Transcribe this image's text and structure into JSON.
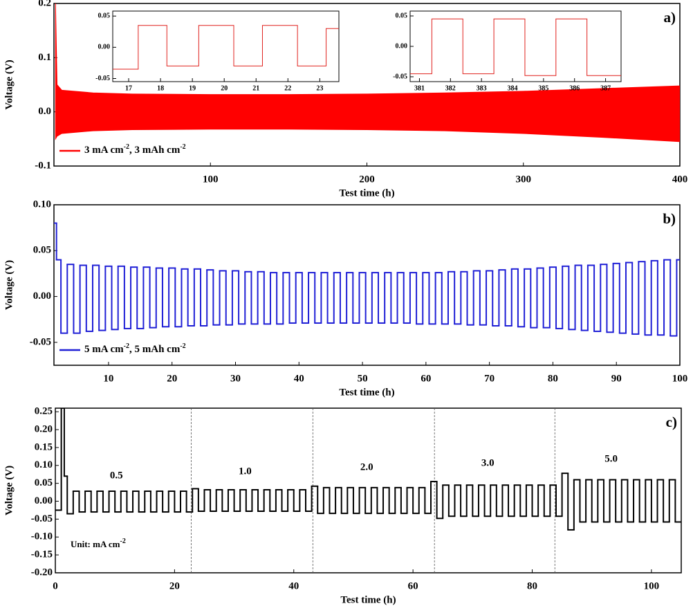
{
  "chart_data": [
    {
      "type": "band",
      "ylabel": "Voltage (V)",
      "xlabel": "Test time (h)",
      "panel": "a)",
      "legend": "lower left",
      "xlim": [
        0,
        400
      ],
      "xticks": [
        100,
        200,
        300,
        400
      ],
      "ylim": [
        -0.1,
        0.2
      ],
      "yticks": [
        -0.1,
        {
          "value": 0,
          "label": "0.0"
        },
        0.1,
        0.2
      ],
      "x": [
        1,
        2,
        5,
        25,
        50,
        100,
        150,
        200,
        250,
        300,
        350,
        400
      ],
      "series": [
        {
          "name": "3 mA cm-2, 3 mAh cm-2",
          "color": "#ff0000",
          "values": [
            0.2,
            0.05,
            0.04,
            0.035,
            0.033,
            0.032,
            0.032,
            0.033,
            0.035,
            0.038,
            0.043,
            0.048
          ],
          "lower": [
            -0.05,
            -0.045,
            -0.04,
            -0.035,
            -0.033,
            -0.032,
            -0.032,
            -0.033,
            -0.035,
            -0.04,
            -0.047,
            -0.055
          ]
        }
      ]
    },
    {
      "type": "step",
      "xlim": [
        16.5,
        23.6
      ],
      "xticks": [
        17,
        18,
        19,
        20,
        21,
        22,
        23
      ],
      "ylim": [
        -0.055,
        0.058
      ],
      "yticks": [
        -0.05,
        {
          "value": 0,
          "label": "0.00"
        },
        0.05
      ],
      "x": [
        16.5,
        17.3,
        18.2,
        19.2,
        20.3,
        21.2,
        22.3,
        23.2
      ],
      "series": [
        {
          "color": "#e0201c",
          "values": [
            -0.035,
            0.035,
            -0.03,
            0.035,
            -0.03,
            0.035,
            -0.03,
            0.03
          ]
        }
      ]
    },
    {
      "type": "step",
      "xlim": [
        380.7,
        387.5
      ],
      "xticks": [
        381,
        382,
        383,
        384,
        385,
        386,
        387
      ],
      "ylim": [
        -0.058,
        0.058
      ],
      "yticks": [
        -0.05,
        {
          "value": 0,
          "label": "0.00"
        },
        0.05
      ],
      "x": [
        380.7,
        381.4,
        382.4,
        383.4,
        384.4,
        385.4,
        386.4
      ],
      "series": [
        {
          "color": "#e0201c",
          "values": [
            -0.045,
            0.045,
            -0.045,
            0.045,
            -0.048,
            0.045,
            -0.048
          ]
        }
      ]
    },
    {
      "type": "step",
      "ylabel": "Voltage (V)",
      "xlabel": "Test time (h)",
      "panel": "b)",
      "legend": "lower left",
      "xlim": [
        1.4,
        100
      ],
      "xticks": [
        10,
        20,
        30,
        40,
        50,
        60,
        70,
        80,
        90,
        100
      ],
      "ylim": [
        -0.075,
        0.1
      ],
      "yticks": [
        {
          "value": -0.05,
          "label": "-0.05"
        },
        {
          "value": 0,
          "label": "0.00"
        },
        0.05,
        {
          "value": 0.1,
          "label": "0.10"
        }
      ],
      "x": [
        1.4,
        1.8,
        2.5,
        3.5,
        4.5,
        5.5,
        6.5,
        7.5,
        8.5,
        9.5,
        10.5,
        11.5,
        12.5,
        13.5,
        14.5,
        15.5,
        16.5,
        17.5,
        18.5,
        19.5,
        20.5,
        21.5,
        22.5,
        23.5,
        24.5,
        25.5,
        26.5,
        27.5,
        28.5,
        29.5,
        30.5,
        31.5,
        32.5,
        33.5,
        34.5,
        35.5,
        36.5,
        37.5,
        38.5,
        39.5,
        40.5,
        41.5,
        42.5,
        43.5,
        44.5,
        45.5,
        46.5,
        47.5,
        48.5,
        49.5,
        50.5,
        51.5,
        52.5,
        53.5,
        54.5,
        55.5,
        56.5,
        57.5,
        58.5,
        59.5,
        60.5,
        61.5,
        62.5,
        63.5,
        64.5,
        65.5,
        66.5,
        67.5,
        68.5,
        69.5,
        70.5,
        71.5,
        72.5,
        73.5,
        74.5,
        75.5,
        76.5,
        77.5,
        78.5,
        79.5,
        80.5,
        81.5,
        82.5,
        83.5,
        84.5,
        85.5,
        86.5,
        87.5,
        88.5,
        89.5,
        90.5,
        91.5,
        92.5,
        93.5,
        94.5,
        95.5,
        96.5,
        97.5,
        98.5,
        99.5
      ],
      "series": [
        {
          "name": "5 mA cm-2, 5 mAh cm-2",
          "color": "#1f1fd6",
          "values": [
            0.08,
            0.04,
            -0.04,
            0.035,
            -0.04,
            0.034,
            -0.038,
            0.034,
            -0.037,
            0.033,
            -0.036,
            0.033,
            -0.035,
            0.032,
            -0.035,
            0.032,
            -0.034,
            0.031,
            -0.033,
            0.031,
            -0.033,
            0.03,
            -0.032,
            0.03,
            -0.032,
            0.029,
            -0.031,
            0.028,
            -0.031,
            0.028,
            -0.03,
            0.027,
            -0.03,
            0.027,
            -0.03,
            0.026,
            -0.03,
            0.026,
            -0.029,
            0.026,
            -0.029,
            0.026,
            -0.029,
            0.026,
            -0.029,
            0.026,
            -0.029,
            0.026,
            -0.029,
            0.026,
            -0.029,
            0.026,
            -0.029,
            0.026,
            -0.029,
            0.026,
            -0.029,
            0.026,
            -0.03,
            0.026,
            -0.03,
            0.026,
            -0.03,
            0.027,
            -0.03,
            0.027,
            -0.031,
            0.028,
            -0.031,
            0.028,
            -0.032,
            0.029,
            -0.032,
            0.03,
            -0.033,
            0.03,
            -0.034,
            0.031,
            -0.034,
            0.032,
            -0.035,
            0.033,
            -0.036,
            0.034,
            -0.037,
            0.034,
            -0.038,
            0.035,
            -0.039,
            0.036,
            -0.04,
            0.037,
            -0.041,
            0.038,
            -0.042,
            0.039,
            -0.042,
            0.04,
            -0.043,
            0.04
          ]
        }
      ]
    },
    {
      "type": "step",
      "ylabel": "Voltage (V)",
      "xlabel": "Test time (h)",
      "panel": "c)",
      "note": "Unit: mA cm-2",
      "annotations": [
        "0.5",
        "1.0",
        "2.0",
        "3.0",
        "5.0"
      ],
      "vlines": [
        22.8,
        43.2,
        63.6,
        83.8
      ],
      "xlim": [
        0,
        105
      ],
      "xticks": [
        0,
        20,
        40,
        60,
        80,
        100
      ],
      "ylim": [
        -0.2,
        0.26
      ],
      "yticks": [
        {
          "value": -0.2,
          "label": "-0.20"
        },
        -0.15,
        {
          "value": -0.1,
          "label": "-0.10"
        },
        -0.05,
        {
          "value": 0,
          "label": "0.00"
        },
        0.05,
        {
          "value": 0.1,
          "label": "0.10"
        },
        0.15,
        {
          "value": 0.2,
          "label": "0.20"
        },
        0.25
      ],
      "x": [
        0,
        1,
        1.5,
        2,
        3,
        4,
        5,
        6,
        7,
        8,
        9,
        10,
        11,
        12,
        13,
        14,
        15,
        16,
        17,
        18,
        19,
        20,
        21,
        22,
        23,
        24,
        25,
        26,
        27,
        28,
        29,
        30,
        31,
        32,
        33,
        34,
        35,
        36,
        37,
        38,
        39,
        40,
        41,
        42,
        43,
        44,
        45,
        46,
        47,
        48,
        49,
        50,
        51,
        52,
        53,
        54,
        55,
        56,
        57,
        58,
        59,
        60,
        61,
        62,
        63,
        64,
        65,
        66,
        67,
        68,
        69,
        70,
        71,
        72,
        73,
        74,
        75,
        76,
        77,
        78,
        79,
        80,
        81,
        82,
        83,
        84,
        85,
        86,
        87,
        88,
        89,
        90,
        91,
        92,
        93,
        94,
        95,
        96,
        97,
        98,
        99,
        100,
        101,
        102,
        103,
        104
      ],
      "series": [
        {
          "color": "#000000",
          "values": [
            -0.025,
            0.26,
            0.07,
            -0.035,
            0.028,
            -0.03,
            0.028,
            -0.03,
            0.028,
            -0.03,
            0.028,
            -0.03,
            0.028,
            -0.03,
            0.028,
            -0.03,
            0.028,
            -0.03,
            0.028,
            -0.03,
            0.028,
            -0.03,
            0.028,
            -0.03,
            0.035,
            -0.028,
            0.032,
            -0.028,
            0.032,
            -0.028,
            0.032,
            -0.028,
            0.032,
            -0.028,
            0.032,
            -0.028,
            0.032,
            -0.028,
            0.032,
            -0.028,
            0.032,
            -0.028,
            0.032,
            -0.028,
            0.042,
            -0.034,
            0.038,
            -0.034,
            0.038,
            -0.034,
            0.038,
            -0.034,
            0.038,
            -0.034,
            0.038,
            -0.034,
            0.038,
            -0.034,
            0.038,
            -0.034,
            0.038,
            -0.034,
            0.038,
            -0.034,
            0.055,
            -0.048,
            0.045,
            -0.042,
            0.045,
            -0.042,
            0.045,
            -0.042,
            0.045,
            -0.042,
            0.045,
            -0.042,
            0.045,
            -0.042,
            0.045,
            -0.042,
            0.045,
            -0.042,
            0.045,
            -0.042,
            0.045,
            -0.042,
            0.078,
            -0.08,
            0.06,
            -0.058,
            0.06,
            -0.058,
            0.06,
            -0.058,
            0.06,
            -0.058,
            0.06,
            -0.058,
            0.06,
            -0.058,
            0.06,
            -0.058,
            0.06,
            -0.058,
            0.06,
            -0.058
          ]
        }
      ]
    }
  ]
}
